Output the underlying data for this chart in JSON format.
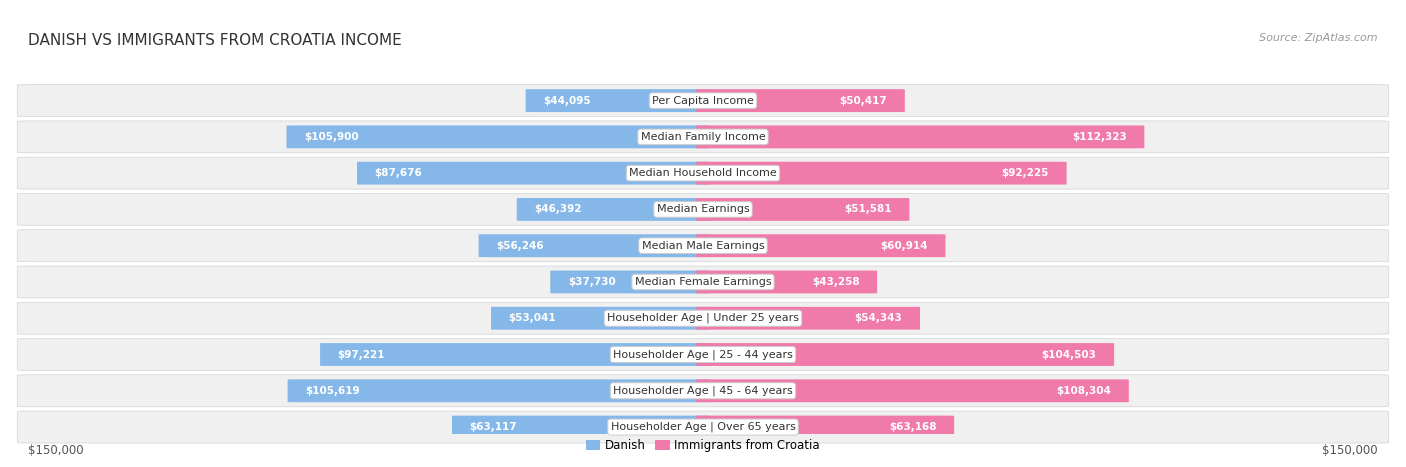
{
  "title": "DANISH VS IMMIGRANTS FROM CROATIA INCOME",
  "source": "Source: ZipAtlas.com",
  "categories": [
    "Per Capita Income",
    "Median Family Income",
    "Median Household Income",
    "Median Earnings",
    "Median Male Earnings",
    "Median Female Earnings",
    "Householder Age | Under 25 years",
    "Householder Age | 25 - 44 years",
    "Householder Age | 45 - 64 years",
    "Householder Age | Over 65 years"
  ],
  "danish_values": [
    44095,
    105900,
    87676,
    46392,
    56246,
    37730,
    53041,
    97221,
    105619,
    63117
  ],
  "croatia_values": [
    50417,
    112323,
    92225,
    51581,
    60914,
    43258,
    54343,
    104503,
    108304,
    63168
  ],
  "danish_color": "#85b8e8",
  "croatia_color": "#f07aaa",
  "danish_label": "Danish",
  "croatia_label": "Immigrants from Croatia",
  "max_value": 150000,
  "row_bg_color": "#f0f0f0",
  "row_edge_color": "#d8d8d8",
  "title_fontsize": 11,
  "source_fontsize": 8,
  "cat_fontsize": 8,
  "value_fontsize": 7.5
}
